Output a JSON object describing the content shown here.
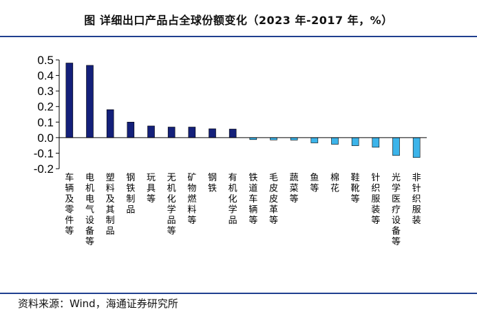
{
  "header": {
    "title": "图 详细出口产品占全球份额变化（2023 年-2017 年，%）"
  },
  "footer": {
    "source": "资料来源：Wind，海通证券研究所"
  },
  "colors": {
    "positive": "#14207a",
    "negative": "#3cb4ea",
    "rule": "#1f3f8f"
  },
  "chart_data": {
    "type": "bar",
    "title": "",
    "xlabel": "",
    "ylabel": "",
    "ylim": [
      -0.2,
      0.5
    ],
    "yticks": [
      "0.5",
      "0.4",
      "0.3",
      "0.2",
      "0.1",
      "0.0",
      "-0.1",
      "-0.2"
    ],
    "ytick_values": [
      0.5,
      0.4,
      0.3,
      0.2,
      0.1,
      0.0,
      -0.1,
      -0.2
    ],
    "categories": [
      "车辆及零件等",
      "电机电气设备等",
      "塑料及其制品",
      "钢铁制品",
      "玩具等",
      "无机化学品等",
      "矿物燃料等",
      "钢铁",
      "有机化学品",
      "铁道车辆等",
      "毛皮皮革等",
      "蔬菜等",
      "鱼等",
      "棉花",
      "鞋靴等",
      "针织服装等",
      "光学医疗设备等",
      "非针织服装"
    ],
    "values": [
      0.48,
      0.465,
      0.18,
      0.1,
      0.075,
      0.068,
      0.068,
      0.057,
      0.055,
      -0.013,
      -0.015,
      -0.016,
      -0.034,
      -0.043,
      -0.052,
      -0.062,
      -0.115,
      -0.128
    ],
    "grid": false,
    "legend": "none"
  }
}
